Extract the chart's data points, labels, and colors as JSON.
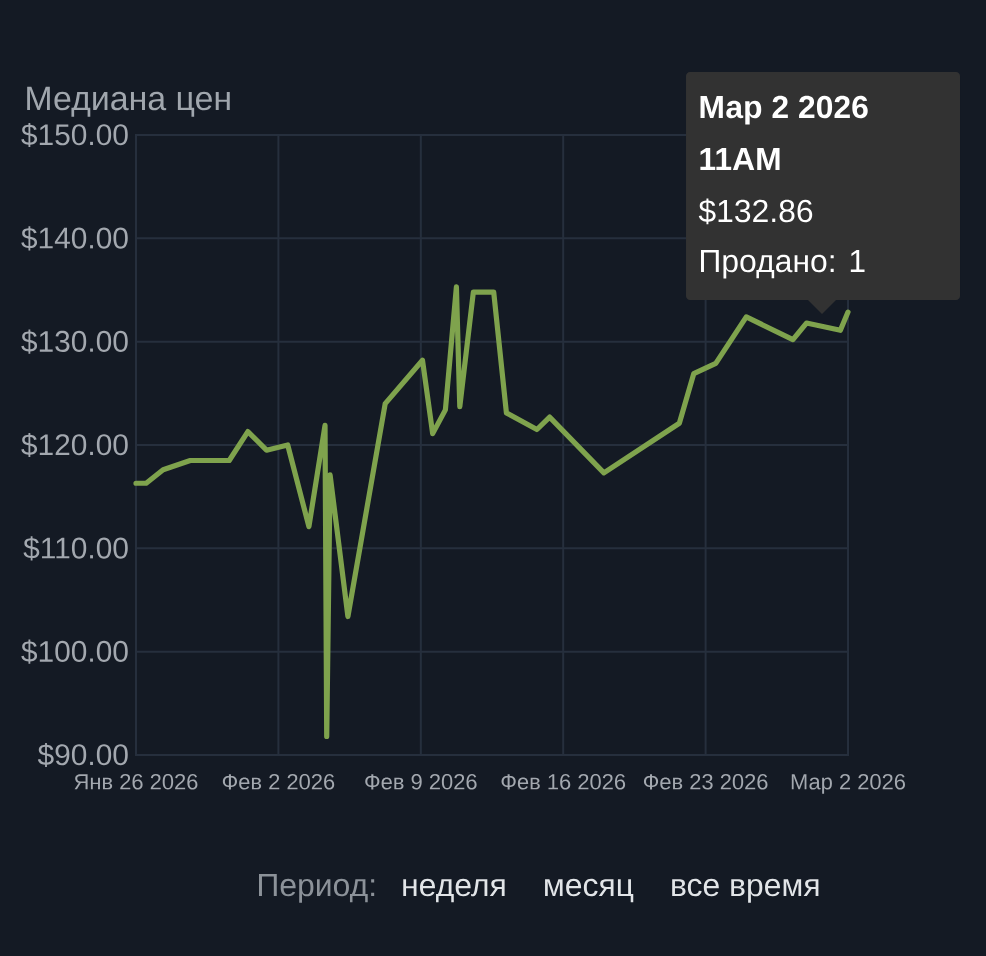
{
  "chart_data": {
    "type": "line",
    "ylabel": "Медиана цен",
    "x": [
      "2026-01-26T11:00",
      "2026-01-26T23:00",
      "2026-01-27T19:00",
      "2026-01-29T03:00",
      "2026-01-31T01:00",
      "2026-01-31T23:00",
      "2026-02-01T21:00",
      "2026-02-02T22:00",
      "2026-02-03T23:00",
      "2026-02-04T18:00",
      "2026-02-04T20:00",
      "2026-02-05T00:00",
      "2026-02-05T21:00",
      "2026-02-07T17:00",
      "2026-02-09T13:00",
      "2026-02-10T01:00",
      "2026-02-10T16:00",
      "2026-02-11T05:00",
      "2026-02-11T09:00",
      "2026-02-12T01:00",
      "2026-02-13T01:00",
      "2026-02-13T16:00",
      "2026-02-15T04:00",
      "2026-02-15T19:00",
      "2026-02-18T11:00",
      "2026-02-22T04:00",
      "2026-02-22T21:00",
      "2026-02-23T23:00",
      "2026-02-25T11:00",
      "2026-02-27T18:00",
      "2026-02-28T10:00",
      "2026-03-02T02:00",
      "2026-03-02T11:00"
    ],
    "values": [
      116.3,
      116.3,
      117.6,
      118.5,
      118.5,
      121.3,
      119.5,
      120.0,
      112.1,
      121.9,
      91.8,
      117.1,
      103.4,
      124.0,
      128.2,
      121.1,
      123.4,
      135.3,
      123.7,
      134.8,
      134.8,
      123.1,
      121.5,
      122.7,
      117.3,
      122.1,
      126.9,
      127.9,
      132.4,
      130.2,
      131.8,
      131.1,
      132.86
    ],
    "color": "#7fa34d",
    "xlim": [
      "2026-01-26T11:00",
      "2026-03-02T11:00"
    ],
    "xticks": [
      {
        "value": "2026-01-26T11:00",
        "label": "Янв 26 2026"
      },
      {
        "value": "2026-02-02T11:00",
        "label": "Фев 2 2026"
      },
      {
        "value": "2026-02-09T11:00",
        "label": "Фев 9 2026"
      },
      {
        "value": "2026-02-16T11:00",
        "label": "Фев 16 2026"
      },
      {
        "value": "2026-02-23T11:00",
        "label": "Фев 23 2026"
      },
      {
        "value": "2026-03-02T11:00",
        "label": "Мар 2 2026"
      }
    ],
    "ylim": [
      90,
      150
    ],
    "yticks": [
      {
        "value": 90,
        "label": "$90.00"
      },
      {
        "value": 100,
        "label": "$100.00"
      },
      {
        "value": 110,
        "label": "$110.00"
      },
      {
        "value": 120,
        "label": "$120.00"
      },
      {
        "value": 130,
        "label": "$130.00"
      },
      {
        "value": 140,
        "label": "$140.00"
      },
      {
        "value": 150,
        "label": "$150.00"
      }
    ],
    "grid": true,
    "annotations": [
      "Мар 2 2026",
      "11AM",
      "$132.86",
      "Продано: 1",
      "Период:",
      "неделя",
      "месяц",
      "все время"
    ]
  }
}
